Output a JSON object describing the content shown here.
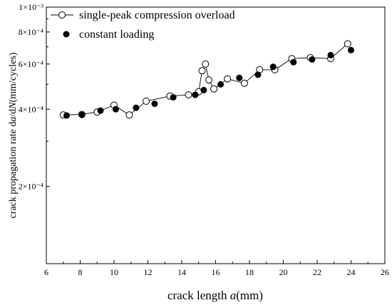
{
  "chart_data": {
    "type": "scatter",
    "xlabel": {
      "prefix": "crack length ",
      "var": "a",
      "suffix": "(mm)"
    },
    "ylabel": {
      "prefix": "crack propagation rate  d",
      "var1": "a",
      "mid": "/d",
      "var2": "N",
      "suffix": "(mm/cycles)"
    },
    "xlim": [
      6,
      26
    ],
    "ylim": [
      0.0001,
      0.001
    ],
    "yscale": "log",
    "x_ticks": [
      "6",
      "8",
      "10",
      "12",
      "14",
      "16",
      "18",
      "20",
      "22",
      "24",
      "26"
    ],
    "y_ticks": [
      {
        "value": 0.0002,
        "label": "2×10⁻⁴"
      },
      {
        "value": 0.0004,
        "label": "4×10⁻⁴"
      },
      {
        "value": 0.0006,
        "label": "6×10⁻⁴"
      },
      {
        "value": 0.0008,
        "label": "8×10⁻⁴"
      },
      {
        "value": 0.001,
        "label": "1×10⁻³"
      }
    ],
    "legend_position": "top-left",
    "series": [
      {
        "name": "single-peak compression overload",
        "marker": "open-circle",
        "line": true,
        "color": "#000000",
        "x": [
          7.0,
          8.1,
          9.0,
          10.0,
          10.9,
          11.9,
          13.3,
          14.4,
          15.0,
          15.2,
          15.4,
          15.6,
          15.9,
          16.7,
          17.7,
          18.6,
          19.5,
          20.5,
          21.6,
          22.8,
          23.8
        ],
        "y": [
          0.00038,
          0.000382,
          0.00039,
          0.000415,
          0.00038,
          0.00043,
          0.00045,
          0.000455,
          0.000468,
          0.000565,
          0.0006,
          0.00052,
          0.00048,
          0.000525,
          0.000505,
          0.00057,
          0.00057,
          0.00063,
          0.000635,
          0.00063,
          0.00072
        ]
      },
      {
        "name": "constant loading",
        "marker": "filled-circle",
        "line": false,
        "color": "#000000",
        "x": [
          7.2,
          8.1,
          9.2,
          10.1,
          11.3,
          12.4,
          13.5,
          14.8,
          15.3,
          16.3,
          17.4,
          18.5,
          19.4,
          20.6,
          21.7,
          22.8,
          24.0
        ],
        "y": [
          0.000378,
          0.00038,
          0.000395,
          0.0004,
          0.000405,
          0.00042,
          0.000445,
          0.000455,
          0.000475,
          0.0005,
          0.00053,
          0.000545,
          0.000585,
          0.00061,
          0.000625,
          0.00065,
          0.00068
        ]
      }
    ]
  }
}
